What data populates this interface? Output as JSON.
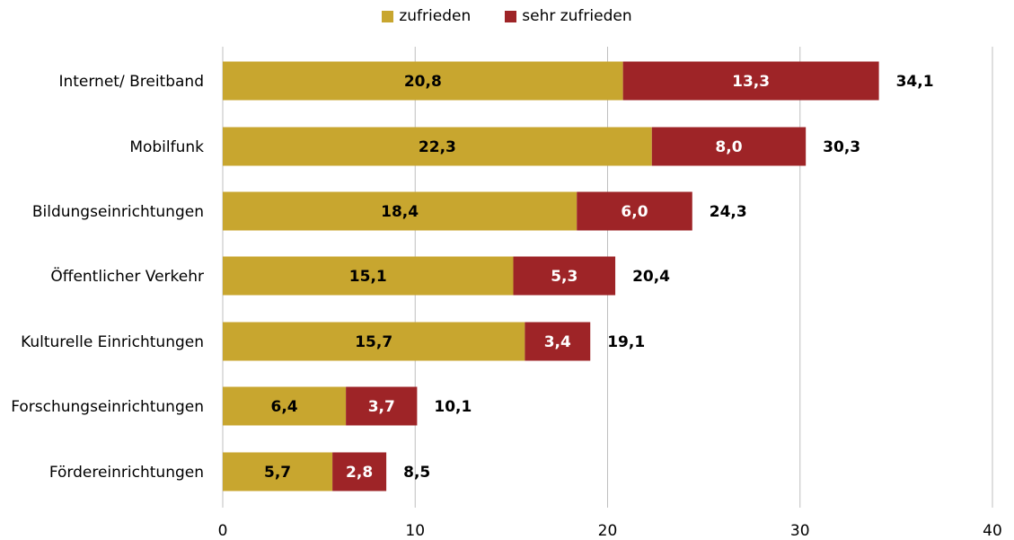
{
  "chart_data": {
    "type": "bar",
    "orientation": "horizontal",
    "stacked": true,
    "categories": [
      "Internet/ Breitband",
      "Mobilfunk",
      "Bildungseinrichtungen",
      "Öffentlicher Verkehr",
      "Kulturelle Einrichtungen",
      "Forschungseinrichtungen",
      "Fördereinrichtungen"
    ],
    "series": [
      {
        "name": "zufrieden",
        "color": "#C8A62F",
        "values": [
          20.8,
          22.3,
          18.4,
          15.1,
          15.7,
          6.4,
          5.7
        ],
        "labels": [
          "20,8",
          "22,3",
          "18,4",
          "15,1",
          "15,7",
          "6,4",
          "5,7"
        ]
      },
      {
        "name": "sehr zufrieden",
        "color": "#9E2427",
        "values": [
          13.3,
          8.0,
          6.0,
          5.3,
          3.4,
          3.7,
          2.8
        ],
        "labels": [
          "13,3",
          "8,0",
          "6,0",
          "5,3",
          "3,4",
          "3,7",
          "2,8"
        ]
      }
    ],
    "totals": [
      34.1,
      30.3,
      24.3,
      20.4,
      19.1,
      10.1,
      8.5
    ],
    "total_labels": [
      "34,1",
      "30,3",
      "24,3",
      "20,4",
      "19,1",
      "10,1",
      "8,5"
    ],
    "xlim": [
      0,
      40
    ],
    "xticks": [
      0,
      10,
      20,
      30,
      40
    ],
    "xtick_labels": [
      "0",
      "10",
      "20",
      "30",
      "40"
    ],
    "grid": true,
    "legend_position": "top-center",
    "title": "",
    "xlabel": "",
    "ylabel": ""
  }
}
